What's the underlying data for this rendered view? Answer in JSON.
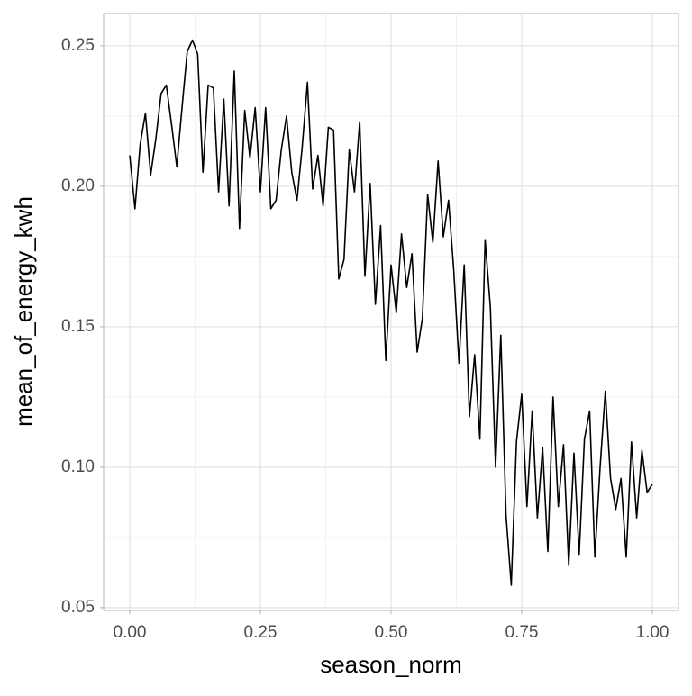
{
  "chart_data": {
    "type": "line",
    "x_label": "season_norm",
    "y_label": "mean_of_energy_kwh",
    "x": [
      0,
      0.01,
      0.02,
      0.03,
      0.04,
      0.05,
      0.06,
      0.07,
      0.08,
      0.09,
      0.1,
      0.11,
      0.12,
      0.13,
      0.14,
      0.15,
      0.16,
      0.17,
      0.18,
      0.19,
      0.2,
      0.21,
      0.22,
      0.23,
      0.24,
      0.25,
      0.26,
      0.27,
      0.28,
      0.29,
      0.3,
      0.31,
      0.32,
      0.33,
      0.34,
      0.35,
      0.36,
      0.37,
      0.38,
      0.39,
      0.4,
      0.41,
      0.42,
      0.43,
      0.44,
      0.45,
      0.46,
      0.47,
      0.48,
      0.49,
      0.5,
      0.51,
      0.52,
      0.53,
      0.54,
      0.55,
      0.56,
      0.57,
      0.58,
      0.59,
      0.6,
      0.61,
      0.62,
      0.63,
      0.64,
      0.65,
      0.66,
      0.67,
      0.68,
      0.69,
      0.7,
      0.71,
      0.72,
      0.73,
      0.74,
      0.75,
      0.76,
      0.77,
      0.78,
      0.79,
      0.8,
      0.81,
      0.82,
      0.83,
      0.84,
      0.85,
      0.86,
      0.87,
      0.88,
      0.89,
      0.9,
      0.91,
      0.92,
      0.93,
      0.94,
      0.95,
      0.96,
      0.97,
      0.98,
      0.99,
      1
    ],
    "series": [
      {
        "name": "mean_of_energy_kwh",
        "color": "#000000",
        "values": [
          0.211,
          0.192,
          0.215,
          0.226,
          0.204,
          0.217,
          0.233,
          0.236,
          0.222,
          0.207,
          0.228,
          0.248,
          0.252,
          0.247,
          0.205,
          0.236,
          0.235,
          0.198,
          0.231,
          0.193,
          0.241,
          0.185,
          0.227,
          0.21,
          0.228,
          0.198,
          0.228,
          0.192,
          0.195,
          0.213,
          0.225,
          0.205,
          0.195,
          0.214,
          0.237,
          0.199,
          0.211,
          0.193,
          0.221,
          0.22,
          0.167,
          0.174,
          0.213,
          0.198,
          0.223,
          0.168,
          0.201,
          0.158,
          0.186,
          0.138,
          0.172,
          0.155,
          0.183,
          0.164,
          0.176,
          0.141,
          0.153,
          0.197,
          0.18,
          0.209,
          0.182,
          0.195,
          0.17,
          0.137,
          0.172,
          0.118,
          0.14,
          0.11,
          0.181,
          0.157,
          0.1,
          0.147,
          0.083,
          0.058,
          0.109,
          0.126,
          0.086,
          0.12,
          0.082,
          0.107,
          0.07,
          0.125,
          0.086,
          0.108,
          0.065,
          0.105,
          0.069,
          0.11,
          0.12,
          0.068,
          0.1,
          0.127,
          0.096,
          0.085,
          0.096,
          0.068,
          0.109,
          0.082,
          0.106,
          0.091,
          0.094
        ]
      }
    ],
    "xlim": [
      -0.05,
      1.05
    ],
    "ylim": [
      0.049,
      0.2615
    ],
    "xticks": [
      {
        "value": 0,
        "label": "0.00"
      },
      0.25,
      {
        "value": 0.5,
        "label": "0.50"
      },
      0.75,
      {
        "value": 1,
        "label": "1.00"
      }
    ],
    "yticks": [
      0.05,
      {
        "value": 0.1,
        "label": "0.10"
      },
      0.15,
      {
        "value": 0.2,
        "label": "0.20"
      },
      0.25
    ],
    "grid": true
  }
}
